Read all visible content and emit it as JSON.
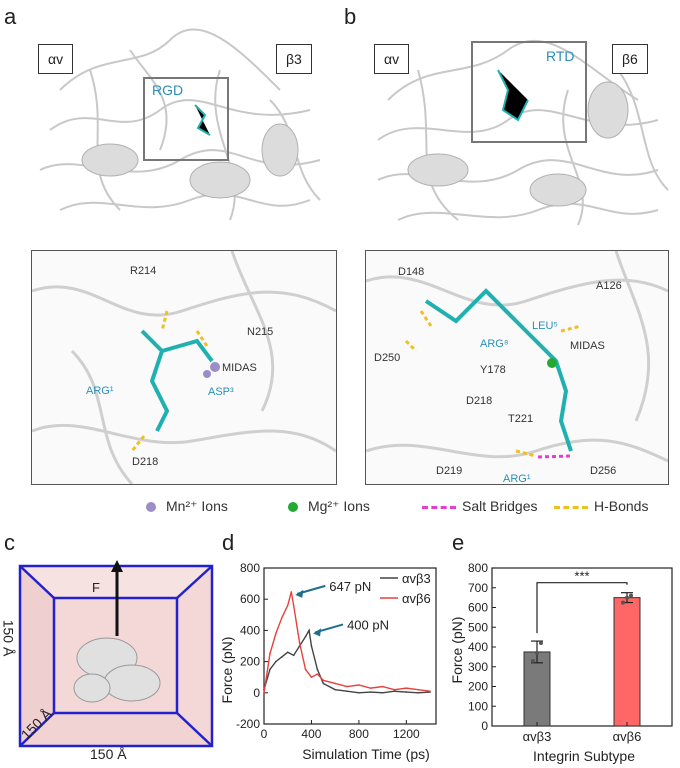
{
  "panels": {
    "a": "a",
    "b": "b",
    "c": "c",
    "d": "d",
    "e": "e"
  },
  "panel_a": {
    "left_subunit": "αv",
    "right_subunit": "β3",
    "motif": "RGD",
    "zoom_labels": {
      "r214": "R214",
      "n215": "N215",
      "midas": "MIDAS",
      "arg1": "ARG¹",
      "asp3": "ASP³",
      "d218": "D218"
    }
  },
  "panel_b": {
    "left_subunit": "αv",
    "right_subunit": "β6",
    "motif": "RTD",
    "zoom_labels": {
      "d148": "D148",
      "a126": "A126",
      "leu": "LEU⁵",
      "arg": "ARG⁸",
      "midas": "MIDAS",
      "d250": "D250",
      "y178": "Y178",
      "d218": "D218",
      "t221": "T221",
      "d219": "D219",
      "arg1": "ARG¹",
      "d256": "D256"
    }
  },
  "legend": {
    "mn": "Mn²⁺ Ions",
    "mg": "Mg²⁺ Ions",
    "salt": "Salt Bridges",
    "hbond": "H-Bonds",
    "colors": {
      "mn": "#9b8dc8",
      "mg": "#22aa33",
      "salt": "#e040d0",
      "hbond": "#f0c020"
    }
  },
  "panel_c": {
    "force_label": "F",
    "dim_left": "150 Å",
    "dim_diag": "150 Å",
    "dim_bottom": "150 Å"
  },
  "chart_data": [
    {
      "type": "line",
      "xlabel": "Simulation Time (ps)",
      "ylabel": "Force (pN)",
      "xlim": [
        0,
        1450
      ],
      "ylim": [
        -200,
        800
      ],
      "xticks": [
        "0",
        "400",
        "800",
        "1200"
      ],
      "yticks": [
        "-200",
        "0",
        "200",
        "400",
        "600",
        "800"
      ],
      "series": [
        {
          "name": "αvβ3",
          "color": "#444444",
          "x": [
            0,
            50,
            100,
            150,
            200,
            250,
            300,
            350,
            380,
            400,
            450,
            500,
            600,
            700,
            800,
            900,
            1000,
            1100,
            1200,
            1300,
            1400
          ],
          "y": [
            20,
            150,
            200,
            230,
            260,
            240,
            300,
            360,
            400,
            300,
            150,
            60,
            20,
            10,
            0,
            5,
            0,
            10,
            5,
            0,
            5
          ]
        },
        {
          "name": "αvβ6",
          "color": "#e8413b",
          "x": [
            0,
            50,
            100,
            150,
            200,
            230,
            250,
            300,
            350,
            400,
            450,
            500,
            600,
            700,
            800,
            900,
            1000,
            1100,
            1200,
            1300,
            1400
          ],
          "y": [
            0,
            250,
            380,
            480,
            560,
            647,
            560,
            320,
            150,
            100,
            120,
            80,
            60,
            40,
            50,
            30,
            40,
            20,
            30,
            20,
            10
          ]
        }
      ],
      "annotations": [
        {
          "text": "647 pN",
          "x": 230,
          "y": 647
        },
        {
          "text": "400 pN",
          "x": 380,
          "y": 400
        }
      ],
      "legend_position": "top-right"
    },
    {
      "type": "bar",
      "xlabel": "Integrin Subtype",
      "ylabel": "Force (pN)",
      "categories": [
        "αvβ3",
        "αvβ6"
      ],
      "values": [
        375,
        650
      ],
      "errors": [
        55,
        25
      ],
      "points": [
        [
          330,
          370,
          420
        ],
        [
          625,
          650,
          660
        ]
      ],
      "colors": [
        "#7a7a7a",
        "#ff6666"
      ],
      "ylim": [
        0,
        800
      ],
      "yticks": [
        "0",
        "100",
        "200",
        "300",
        "400",
        "500",
        "600",
        "700",
        "800"
      ],
      "significance": "***"
    }
  ]
}
